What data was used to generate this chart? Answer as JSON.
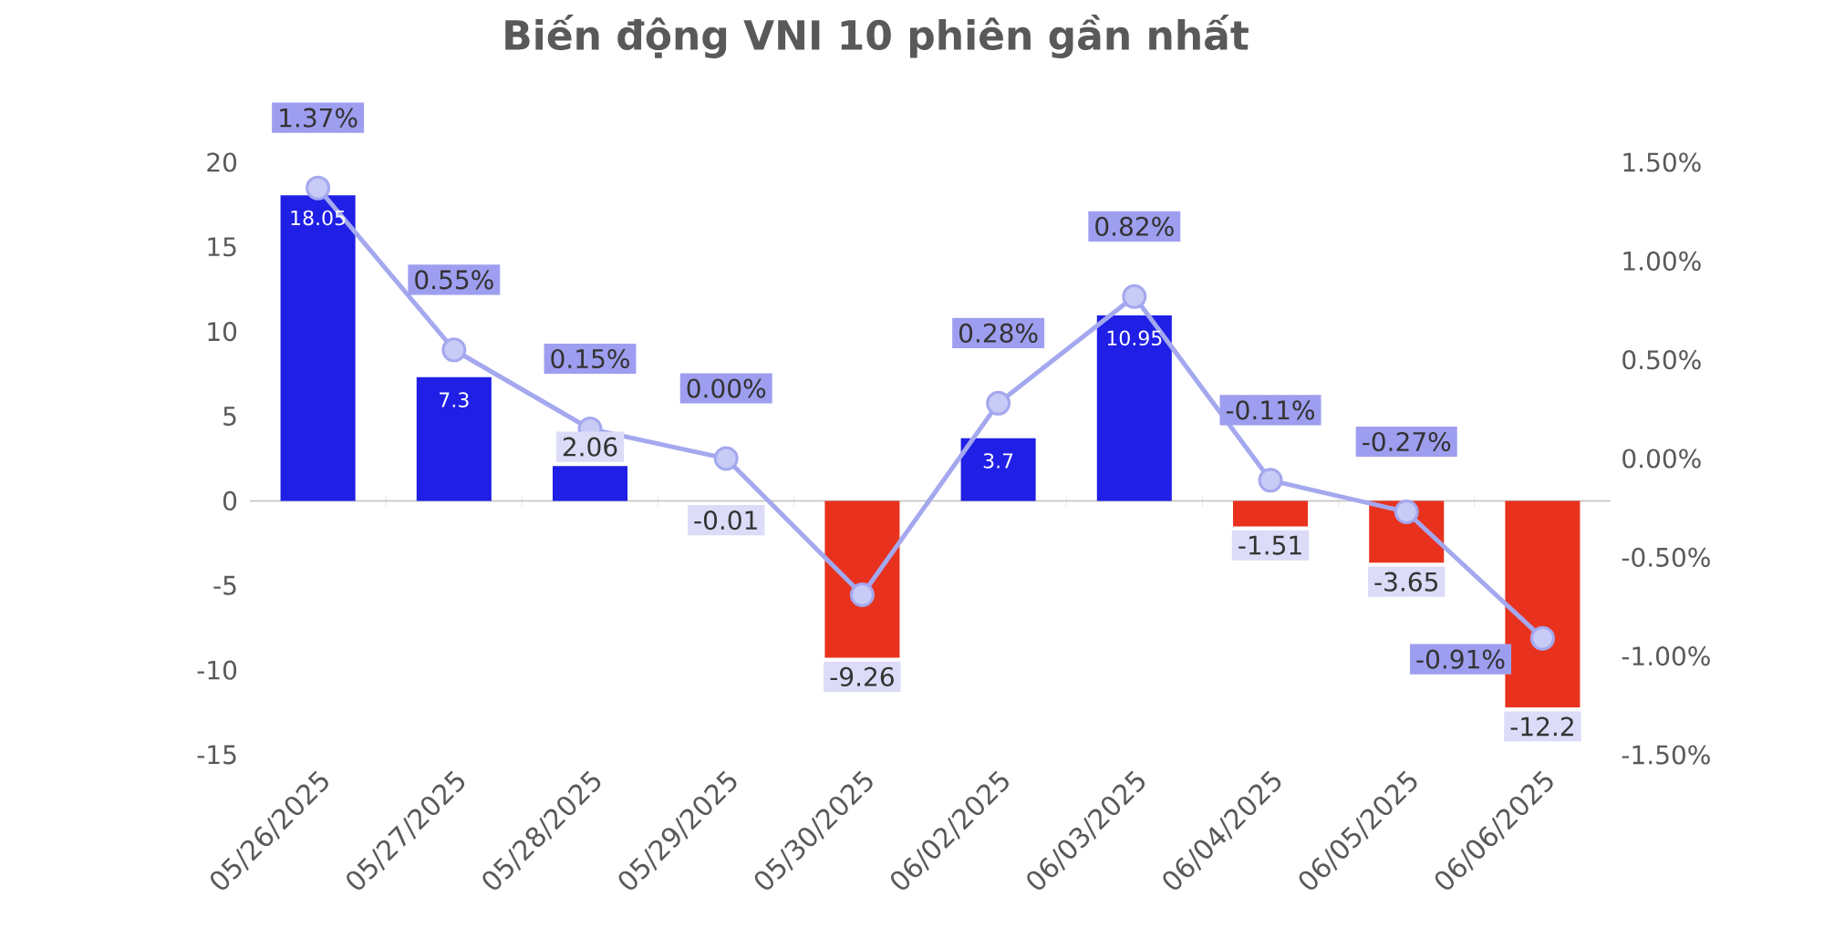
{
  "chart_data": {
    "type": "bar",
    "title": "Biến động VNI 10 phiên gần nhất",
    "categories": [
      "05/26/2025",
      "05/27/2025",
      "05/28/2025",
      "05/29/2025",
      "05/30/2025",
      "06/02/2025",
      "06/03/2025",
      "06/04/2025",
      "06/05/2025",
      "06/06/2025"
    ],
    "ylim": [
      -15,
      20
    ],
    "yticks": [
      -15,
      -10,
      -5,
      0,
      5,
      10,
      15,
      20
    ],
    "y2lim": [
      -1.5,
      1.5
    ],
    "y2ticks": [
      {
        "value": -1.5,
        "label": "-1.50%"
      },
      {
        "value": -1.0,
        "label": "-1.00%"
      },
      {
        "value": -0.5,
        "label": "-0.50%"
      },
      {
        "value": 0.0,
        "label": "0.00%"
      },
      {
        "value": 0.5,
        "label": "0.50%"
      },
      {
        "value": 1.0,
        "label": "1.00%"
      },
      {
        "value": 1.5,
        "label": "1.50%"
      }
    ],
    "marker": "circle",
    "line_style": "solid",
    "series": [
      {
        "colors": [
          "#1f1fe6",
          "#1f1fe6",
          "#1f1fe6",
          "#e8321e",
          "#e8321e",
          "#1f1fe6",
          "#1f1fe6",
          "#e8321e",
          "#e8321e",
          "#e8321e"
        ],
        "values": [
          18.05,
          7.3,
          2.06,
          -0.01,
          -9.26,
          3.7,
          10.95,
          -1.51,
          -3.65,
          -12.2
        ],
        "value_labels": [
          "18.05",
          "7.3",
          "2.06",
          "-0.01",
          "-9.26",
          "3.7",
          "10.95",
          "-1.51",
          "-3.65",
          "-12.2"
        ]
      },
      {
        "type": "line",
        "axis": "y2",
        "color": "#a4a8ee",
        "values": [
          1.37,
          0.55,
          0.15,
          0.0,
          -0.69,
          0.28,
          0.82,
          -0.11,
          -0.27,
          -0.91
        ],
        "value_labels": [
          "1.37%",
          "0.55%",
          "0.15%",
          "0.00%",
          null,
          "0.28%",
          "0.82%",
          "-0.11%",
          "-0.27%",
          "-0.91%"
        ]
      }
    ]
  }
}
